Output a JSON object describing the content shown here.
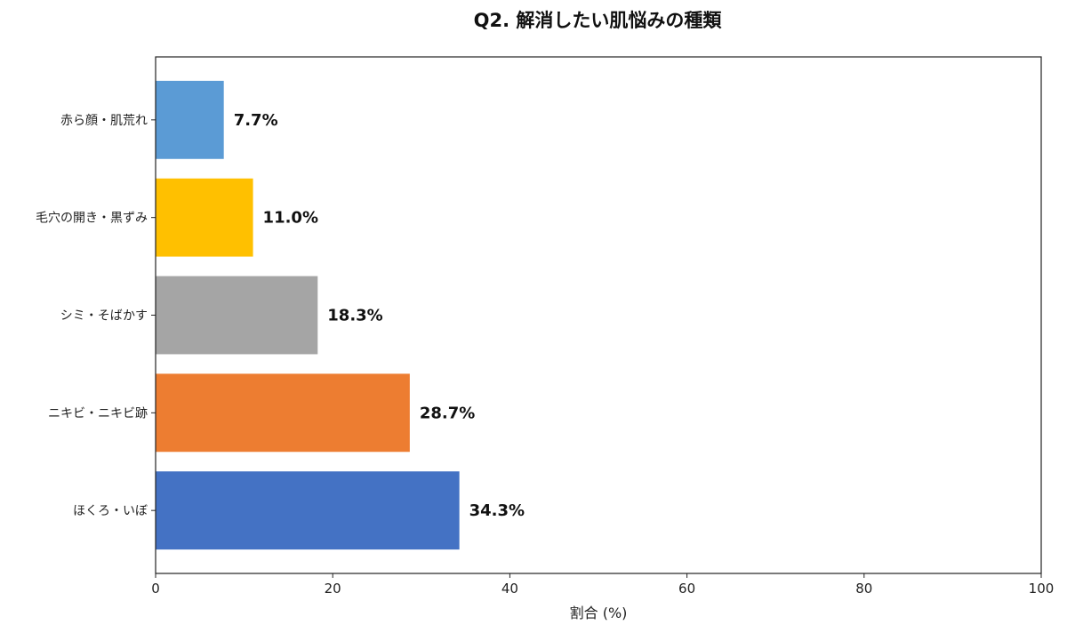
{
  "chart_data": {
    "type": "bar",
    "orientation": "horizontal",
    "title": "Q2. 解消したい肌悩みの種類",
    "xlabel": "割合 (%)",
    "ylabel": "",
    "xlim": [
      0,
      100
    ],
    "xticks": [
      "0",
      "20",
      "40",
      "60",
      "80",
      "100"
    ],
    "grid": false,
    "categories": [
      "ほくろ・いぼ",
      "ニキビ・ニキビ跡",
      "シミ・そばかす",
      "毛穴の開き・黒ずみ",
      "赤ら顔・肌荒れ"
    ],
    "values": [
      34.3,
      28.7,
      18.3,
      11.0,
      7.7
    ],
    "data_labels": [
      "34.3%",
      "28.7%",
      "18.3%",
      "11.0%",
      "7.7%"
    ],
    "colors": [
      "#4472C4",
      "#ED7D31",
      "#A5A5A5",
      "#FFC000",
      "#5B9BD5"
    ]
  }
}
